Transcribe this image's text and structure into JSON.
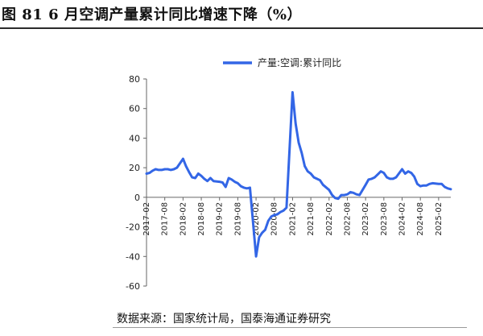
{
  "figure": {
    "title": "图 81 6 月空调产量累计同比增速下降（%）",
    "source": "数据来源：国家统计局，国泰海通证券研究"
  },
  "chart_data": {
    "type": "line",
    "series": [
      {
        "name": "产量:空调:累计同比",
        "color": "#3366e6",
        "x": [
          "2017-02",
          "2017-03",
          "2017-04",
          "2017-05",
          "2017-06",
          "2017-07",
          "2017-08",
          "2017-09",
          "2017-10",
          "2017-11",
          "2017-12",
          "2018-02",
          "2018-03",
          "2018-04",
          "2018-05",
          "2018-06",
          "2018-07",
          "2018-08",
          "2018-09",
          "2018-10",
          "2018-11",
          "2018-12",
          "2019-02",
          "2019-03",
          "2019-04",
          "2019-05",
          "2019-06",
          "2019-07",
          "2019-08",
          "2019-09",
          "2019-10",
          "2019-11",
          "2019-12",
          "2020-02",
          "2020-03",
          "2020-04",
          "2020-05",
          "2020-06",
          "2020-07",
          "2020-08",
          "2020-09",
          "2020-10",
          "2020-11",
          "2020-12",
          "2021-02",
          "2021-03",
          "2021-04",
          "2021-05",
          "2021-06",
          "2021-07",
          "2021-08",
          "2021-09",
          "2021-10",
          "2021-11",
          "2021-12",
          "2022-02",
          "2022-03",
          "2022-04",
          "2022-05",
          "2022-06",
          "2022-07",
          "2022-08",
          "2022-09",
          "2022-10",
          "2022-11",
          "2022-12",
          "2023-02",
          "2023-03",
          "2023-04",
          "2023-05",
          "2023-06",
          "2023-07",
          "2023-08",
          "2023-09",
          "2023-10",
          "2023-11",
          "2023-12",
          "2024-02",
          "2024-03",
          "2024-04",
          "2024-05",
          "2024-06",
          "2024-07",
          "2024-08",
          "2024-09",
          "2024-10",
          "2024-11",
          "2024-12",
          "2025-02",
          "2025-03",
          "2025-04",
          "2025-05",
          "2025-06"
        ],
        "values": [
          16,
          16.5,
          18,
          19,
          18.5,
          18.5,
          19,
          19,
          18.5,
          19,
          20,
          26,
          21,
          17,
          13.5,
          13,
          16,
          14.5,
          12.5,
          11,
          13,
          11,
          10.5,
          10,
          7,
          13,
          12,
          10.5,
          9.5,
          7.5,
          6.5,
          6,
          6.5,
          -40,
          -27,
          -24,
          -22,
          -16,
          -13,
          -12,
          -11.5,
          -10,
          -9,
          -7,
          71,
          50,
          37,
          30,
          21,
          17.5,
          16,
          13.5,
          12.5,
          11.5,
          8.5,
          5,
          1.5,
          -0.5,
          -1,
          1.5,
          1.5,
          2,
          3.5,
          3,
          2,
          1.5,
          8.5,
          12,
          12.5,
          13.5,
          15.5,
          17.5,
          16.5,
          13.5,
          12.5,
          12.5,
          13.5,
          19,
          16,
          17.5,
          16.5,
          14,
          9,
          7.5,
          8,
          8,
          9,
          9.5,
          9,
          9,
          7,
          6,
          5.5
        ]
      }
    ],
    "x_tick_labels": [
      "2017-02",
      "2017-08",
      "2018-02",
      "2018-08",
      "2019-02",
      "2019-08",
      "2020-02",
      "2020-08",
      "2021-02",
      "2021-08",
      "2022-02",
      "2022-08",
      "2023-02",
      "2023-08",
      "2024-02",
      "2024-08",
      "2025-02"
    ],
    "ylim": [
      -60,
      80
    ],
    "y_ticks": [
      -60,
      -40,
      -20,
      0,
      20,
      40,
      60,
      80
    ],
    "xlabel": "",
    "ylabel": "",
    "grid": false,
    "legend_position": "top-center"
  }
}
